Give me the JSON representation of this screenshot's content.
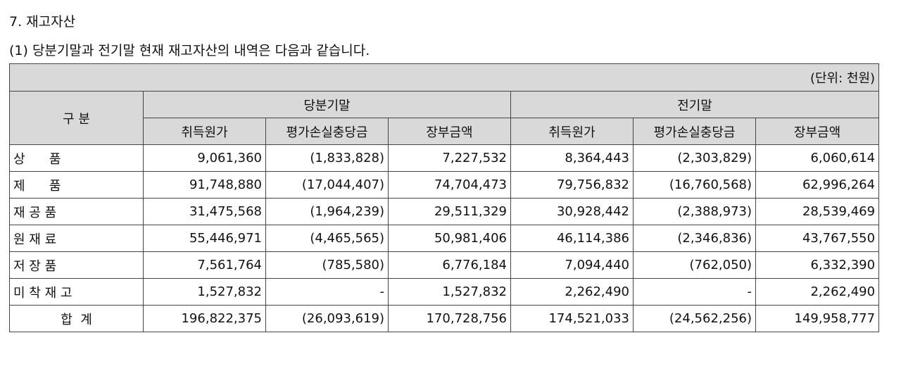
{
  "heading": {
    "section": "7. 재고자산",
    "subtitle": "(1) 당분기말과 전기말 현재 재고자산의 내역은 다음과 같습니다."
  },
  "table": {
    "unit": "(단위: 천원)",
    "category_header": "구 분",
    "periods": [
      "당분기말",
      "전기말"
    ],
    "columns": [
      "취득원가",
      "평가손실충당금",
      "장부금액",
      "취득원가",
      "평가손실충당금",
      "장부금액"
    ],
    "rows": [
      {
        "label": "상      품",
        "values": [
          "9,061,360",
          "(1,833,828)",
          "7,227,532",
          "8,364,443",
          "(2,303,829)",
          "6,060,614"
        ]
      },
      {
        "label": "제      품",
        "values": [
          "91,748,880",
          "(17,044,407)",
          "74,704,473",
          "79,756,832",
          "(16,760,568)",
          "62,996,264"
        ]
      },
      {
        "label": "재 공 품",
        "values": [
          "31,475,568",
          "(1,964,239)",
          "29,511,329",
          "30,928,442",
          "(2,388,973)",
          "28,539,469"
        ]
      },
      {
        "label": "원 재 료",
        "values": [
          "55,446,971",
          "(4,465,565)",
          "50,981,406",
          "46,114,386",
          "(2,346,836)",
          "43,767,550"
        ]
      },
      {
        "label": "저 장 품",
        "values": [
          "7,561,764",
          "(785,580)",
          "6,776,184",
          "7,094,440",
          "(762,050)",
          "6,332,390"
        ]
      },
      {
        "label": "미 착 재 고",
        "values": [
          "1,527,832",
          "-",
          "1,527,832",
          "2,262,490",
          "-",
          "2,262,490"
        ]
      }
    ],
    "total": {
      "label": "합  계",
      "values": [
        "196,822,375",
        "(26,093,619)",
        "170,728,756",
        "174,521,033",
        "(24,562,256)",
        "149,958,777"
      ]
    }
  }
}
